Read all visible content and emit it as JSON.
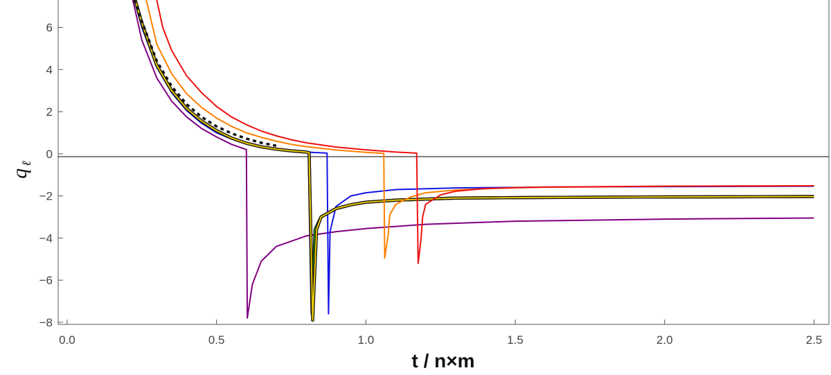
{
  "chart_data": {
    "type": "line",
    "title": "",
    "xlabel": "t / n×m",
    "ylabel_main": "q",
    "ylabel_sub": "ℓ",
    "xlim": [
      -0.03,
      2.55
    ],
    "ylim": [
      -8.1,
      7.3
    ],
    "xticks": [
      0.0,
      0.5,
      1.0,
      1.5,
      2.0,
      2.5
    ],
    "xtick_labels": [
      "0.0",
      "0.5",
      "1.0",
      "1.5",
      "2.0",
      "2.5"
    ],
    "yticks": [
      -8,
      -6,
      -4,
      -2,
      0,
      2,
      4,
      6
    ],
    "ytick_labels": [
      "−8",
      "−6",
      "−4",
      "−2",
      "0",
      "2",
      "4",
      "6"
    ],
    "series": [
      {
        "name": "purple",
        "color": "#800080",
        "dashed": false,
        "x": [
          0.22,
          0.25,
          0.3,
          0.35,
          0.4,
          0.45,
          0.5,
          0.55,
          0.6,
          0.603,
          0.62,
          0.65,
          0.7,
          0.8,
          0.9,
          1.0,
          1.2,
          1.5,
          2.0,
          2.5
        ],
        "y": [
          7.3,
          5.4,
          3.6,
          2.5,
          1.75,
          1.2,
          0.8,
          0.45,
          0.2,
          -7.8,
          -6.2,
          -5.1,
          -4.4,
          -3.9,
          -3.7,
          -3.55,
          -3.35,
          -3.2,
          -3.1,
          -3.05
        ]
      },
      {
        "name": "blue",
        "color": "#1414e6",
        "dashed": false,
        "x": [
          0.225,
          0.25,
          0.3,
          0.35,
          0.4,
          0.45,
          0.5,
          0.55,
          0.6,
          0.7,
          0.8,
          0.87,
          0.875,
          0.88,
          0.9,
          0.95,
          1.0,
          1.1,
          1.3,
          1.6,
          2.0,
          2.5
        ],
        "y": [
          7.3,
          6.0,
          4.1,
          2.9,
          2.05,
          1.45,
          1.0,
          0.7,
          0.48,
          0.22,
          0.08,
          0.03,
          -7.6,
          -3.7,
          -2.5,
          -2.0,
          -1.85,
          -1.7,
          -1.62,
          -1.58,
          -1.56,
          -1.54
        ]
      },
      {
        "name": "green",
        "color": "#22dd00",
        "dashed": false,
        "x": [
          0.228,
          0.25,
          0.3,
          0.35,
          0.4,
          0.45,
          0.5,
          0.55,
          0.6,
          0.65,
          0.7,
          0.75,
          0.8,
          0.81,
          0.82,
          0.83,
          0.85,
          0.9,
          0.95,
          1.0,
          1.1,
          1.2,
          1.3,
          1.5,
          2.0,
          2.5
        ],
        "y": [
          7.3,
          6.2,
          4.2,
          3.0,
          2.15,
          1.55,
          1.1,
          0.75,
          0.5,
          0.33,
          0.22,
          0.14,
          0.08,
          0.05,
          -7.6,
          -3.6,
          -3.0,
          -2.6,
          -2.42,
          -2.3,
          -2.2,
          -2.15,
          -2.1,
          -2.08,
          -2.05,
          -2.03
        ]
      },
      {
        "name": "yellow",
        "color": "#e8c800",
        "dashed": false,
        "x": [
          0.228,
          0.25,
          0.3,
          0.35,
          0.4,
          0.45,
          0.5,
          0.55,
          0.6,
          0.65,
          0.7,
          0.75,
          0.8,
          0.81,
          0.822,
          0.835,
          0.85,
          0.9,
          0.95,
          1.0,
          1.1,
          1.2,
          1.3,
          1.5,
          2.0,
          2.5
        ],
        "y": [
          7.3,
          6.2,
          4.2,
          3.0,
          2.15,
          1.55,
          1.1,
          0.75,
          0.5,
          0.33,
          0.22,
          0.14,
          0.08,
          0.05,
          -7.9,
          -3.6,
          -3.0,
          -2.6,
          -2.42,
          -2.3,
          -2.2,
          -2.15,
          -2.1,
          -2.08,
          -2.05,
          -2.03
        ]
      },
      {
        "name": "black-dashed",
        "color": "#111111",
        "dashed": true,
        "x": [
          0.225,
          0.25,
          0.3,
          0.35,
          0.4,
          0.45,
          0.5,
          0.55,
          0.6,
          0.65,
          0.7
        ],
        "y": [
          7.3,
          6.3,
          4.4,
          3.2,
          2.35,
          1.75,
          1.3,
          0.97,
          0.72,
          0.52,
          0.38
        ]
      },
      {
        "name": "orange",
        "color": "#ff8000",
        "dashed": false,
        "x": [
          0.265,
          0.3,
          0.35,
          0.4,
          0.45,
          0.5,
          0.55,
          0.6,
          0.65,
          0.7,
          0.75,
          0.8,
          0.9,
          1.0,
          1.06,
          1.063,
          1.075,
          1.08,
          1.1,
          1.15,
          1.2,
          1.3,
          1.5,
          2.0,
          2.5
        ],
        "y": [
          7.3,
          5.2,
          3.8,
          2.85,
          2.2,
          1.7,
          1.3,
          1.0,
          0.78,
          0.6,
          0.45,
          0.34,
          0.18,
          0.07,
          0.02,
          -4.95,
          -3.8,
          -2.9,
          -2.4,
          -2.05,
          -1.85,
          -1.72,
          -1.6,
          -1.54,
          -1.52
        ]
      },
      {
        "name": "red",
        "color": "#ee1111",
        "dashed": false,
        "x": [
          0.3,
          0.32,
          0.35,
          0.4,
          0.45,
          0.5,
          0.55,
          0.6,
          0.65,
          0.7,
          0.75,
          0.8,
          0.9,
          1.0,
          1.1,
          1.17,
          1.175,
          1.185,
          1.19,
          1.2,
          1.25,
          1.3,
          1.4,
          1.6,
          2.0,
          2.5
        ],
        "y": [
          7.3,
          6.0,
          4.9,
          3.7,
          2.9,
          2.25,
          1.75,
          1.38,
          1.08,
          0.85,
          0.67,
          0.52,
          0.32,
          0.19,
          0.08,
          0.03,
          -5.2,
          -4.0,
          -3.0,
          -2.4,
          -1.95,
          -1.78,
          -1.65,
          -1.58,
          -1.54,
          -1.52
        ]
      }
    ]
  }
}
